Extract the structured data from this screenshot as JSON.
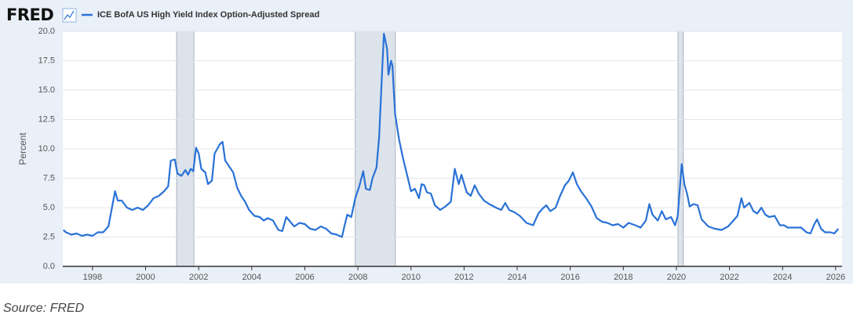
{
  "chart_data": {
    "type": "line",
    "logo": "FRED",
    "ylabel": "Percent",
    "source": "Source: FRED",
    "grid": true,
    "xlim": [
      1996.88,
      2026.24
    ],
    "xticks": [
      1998,
      2000,
      2002,
      2004,
      2006,
      2008,
      2010,
      2012,
      2014,
      2016,
      2018,
      2020,
      2022,
      2024,
      2026
    ],
    "ylim": [
      0,
      20
    ],
    "yticks": [
      {
        "value": 0,
        "label": "0.0"
      },
      2.5,
      {
        "value": 5,
        "label": "5.0"
      },
      7.5,
      {
        "value": 10,
        "label": "10.0"
      },
      12.5,
      {
        "value": 15,
        "label": "15.0"
      },
      17.5,
      {
        "value": 20,
        "label": "20.0"
      }
    ],
    "shaded_periods": [
      {
        "start": 2001.17,
        "end": 2001.82
      },
      {
        "start": 2007.9,
        "end": 2009.41
      },
      {
        "start": 2020.06,
        "end": 2020.26
      }
    ],
    "shade_color": "#dde3eb",
    "series": [
      {
        "name": "ICE BofA US High Yield Index Option-Adjusted Spread",
        "color": "#2a72d6",
        "x": [
          1996.9,
          1997.0,
          1997.2,
          1997.4,
          1997.6,
          1997.8,
          1998.0,
          1998.2,
          1998.4,
          1998.6,
          1998.75,
          1998.85,
          1998.95,
          1999.1,
          1999.3,
          1999.5,
          1999.7,
          1999.9,
          2000.1,
          2000.3,
          2000.5,
          2000.7,
          2000.85,
          2000.95,
          2001.1,
          2001.2,
          2001.35,
          2001.5,
          2001.6,
          2001.7,
          2001.8,
          2001.9,
          2002.0,
          2002.1,
          2002.25,
          2002.35,
          2002.5,
          2002.6,
          2002.7,
          2002.8,
          2002.9,
          2003.0,
          2003.15,
          2003.3,
          2003.45,
          2003.6,
          2003.75,
          2003.9,
          2004.1,
          2004.3,
          2004.45,
          2004.6,
          2004.8,
          2005.0,
          2005.15,
          2005.3,
          2005.45,
          2005.6,
          2005.8,
          2006.0,
          2006.2,
          2006.4,
          2006.6,
          2006.8,
          2007.0,
          2007.2,
          2007.4,
          2007.5,
          2007.6,
          2007.75,
          2007.9,
          2008.05,
          2008.2,
          2008.3,
          2008.45,
          2008.55,
          2008.7,
          2008.8,
          2008.9,
          2008.98,
          2009.1,
          2009.15,
          2009.25,
          2009.3,
          2009.4,
          2009.55,
          2009.7,
          2009.85,
          2010.0,
          2010.15,
          2010.3,
          2010.4,
          2010.5,
          2010.6,
          2010.75,
          2010.9,
          2011.1,
          2011.3,
          2011.5,
          2011.65,
          2011.8,
          2011.9,
          2012.1,
          2012.25,
          2012.4,
          2012.55,
          2012.75,
          2012.95,
          2013.2,
          2013.4,
          2013.55,
          2013.7,
          2013.9,
          2014.1,
          2014.35,
          2014.6,
          2014.8,
          2014.95,
          2015.1,
          2015.25,
          2015.45,
          2015.6,
          2015.8,
          2015.95,
          2016.1,
          2016.25,
          2016.4,
          2016.6,
          2016.8,
          2017.0,
          2017.2,
          2017.4,
          2017.6,
          2017.8,
          2018.0,
          2018.2,
          2018.45,
          2018.65,
          2018.85,
          2018.98,
          2019.1,
          2019.3,
          2019.45,
          2019.6,
          2019.8,
          2019.95,
          2020.05,
          2020.2,
          2020.3,
          2020.4,
          2020.5,
          2020.65,
          2020.8,
          2020.95,
          2021.2,
          2021.45,
          2021.7,
          2021.95,
          2022.15,
          2022.3,
          2022.45,
          2022.55,
          2022.75,
          2022.9,
          2023.05,
          2023.2,
          2023.35,
          2023.5,
          2023.7,
          2023.9,
          2024.05,
          2024.2,
          2024.45,
          2024.7,
          2024.9,
          2025.05,
          2025.2,
          2025.3,
          2025.45,
          2025.6,
          2025.8,
          2025.95,
          2026.1
        ],
        "values": [
          3.1,
          2.9,
          2.7,
          2.8,
          2.6,
          2.7,
          2.6,
          2.9,
          2.9,
          3.4,
          5.2,
          6.4,
          5.6,
          5.6,
          5.0,
          4.8,
          5.0,
          4.8,
          5.2,
          5.8,
          6.0,
          6.4,
          6.8,
          9.0,
          9.1,
          7.9,
          7.7,
          8.2,
          7.8,
          8.3,
          8.1,
          10.1,
          9.6,
          8.3,
          8.0,
          7.0,
          7.3,
          9.6,
          10.0,
          10.4,
          10.6,
          9.0,
          8.5,
          8.0,
          6.7,
          6.0,
          5.5,
          4.8,
          4.3,
          4.2,
          3.9,
          4.1,
          3.9,
          3.1,
          3.0,
          4.2,
          3.8,
          3.4,
          3.7,
          3.6,
          3.2,
          3.1,
          3.4,
          3.2,
          2.8,
          2.7,
          2.5,
          3.5,
          4.4,
          4.2,
          5.8,
          6.8,
          8.1,
          6.6,
          6.5,
          7.5,
          8.4,
          11.0,
          16.0,
          19.8,
          18.5,
          16.3,
          17.5,
          17.1,
          13.0,
          10.8,
          9.2,
          7.8,
          6.4,
          6.6,
          5.8,
          7.0,
          6.9,
          6.3,
          6.2,
          5.2,
          4.8,
          5.1,
          5.5,
          8.3,
          7.0,
          7.8,
          6.3,
          6.0,
          6.9,
          6.2,
          5.6,
          5.3,
          5.0,
          4.8,
          5.4,
          4.8,
          4.6,
          4.3,
          3.7,
          3.5,
          4.5,
          4.9,
          5.2,
          4.7,
          5.0,
          5.9,
          6.9,
          7.3,
          8.0,
          7.0,
          6.4,
          5.8,
          5.1,
          4.1,
          3.8,
          3.7,
          3.5,
          3.6,
          3.3,
          3.7,
          3.5,
          3.3,
          3.9,
          5.3,
          4.4,
          3.9,
          4.7,
          4.0,
          4.2,
          3.5,
          4.3,
          8.7,
          7.0,
          6.2,
          5.1,
          5.3,
          5.2,
          4.0,
          3.4,
          3.2,
          3.1,
          3.4,
          3.9,
          4.3,
          5.8,
          5.0,
          5.4,
          4.7,
          4.5,
          5.0,
          4.4,
          4.2,
          4.3,
          3.5,
          3.5,
          3.3,
          3.3,
          3.3,
          2.9,
          2.8,
          3.6,
          4.0,
          3.2,
          2.9,
          2.9,
          2.8,
          3.2
        ]
      }
    ]
  }
}
